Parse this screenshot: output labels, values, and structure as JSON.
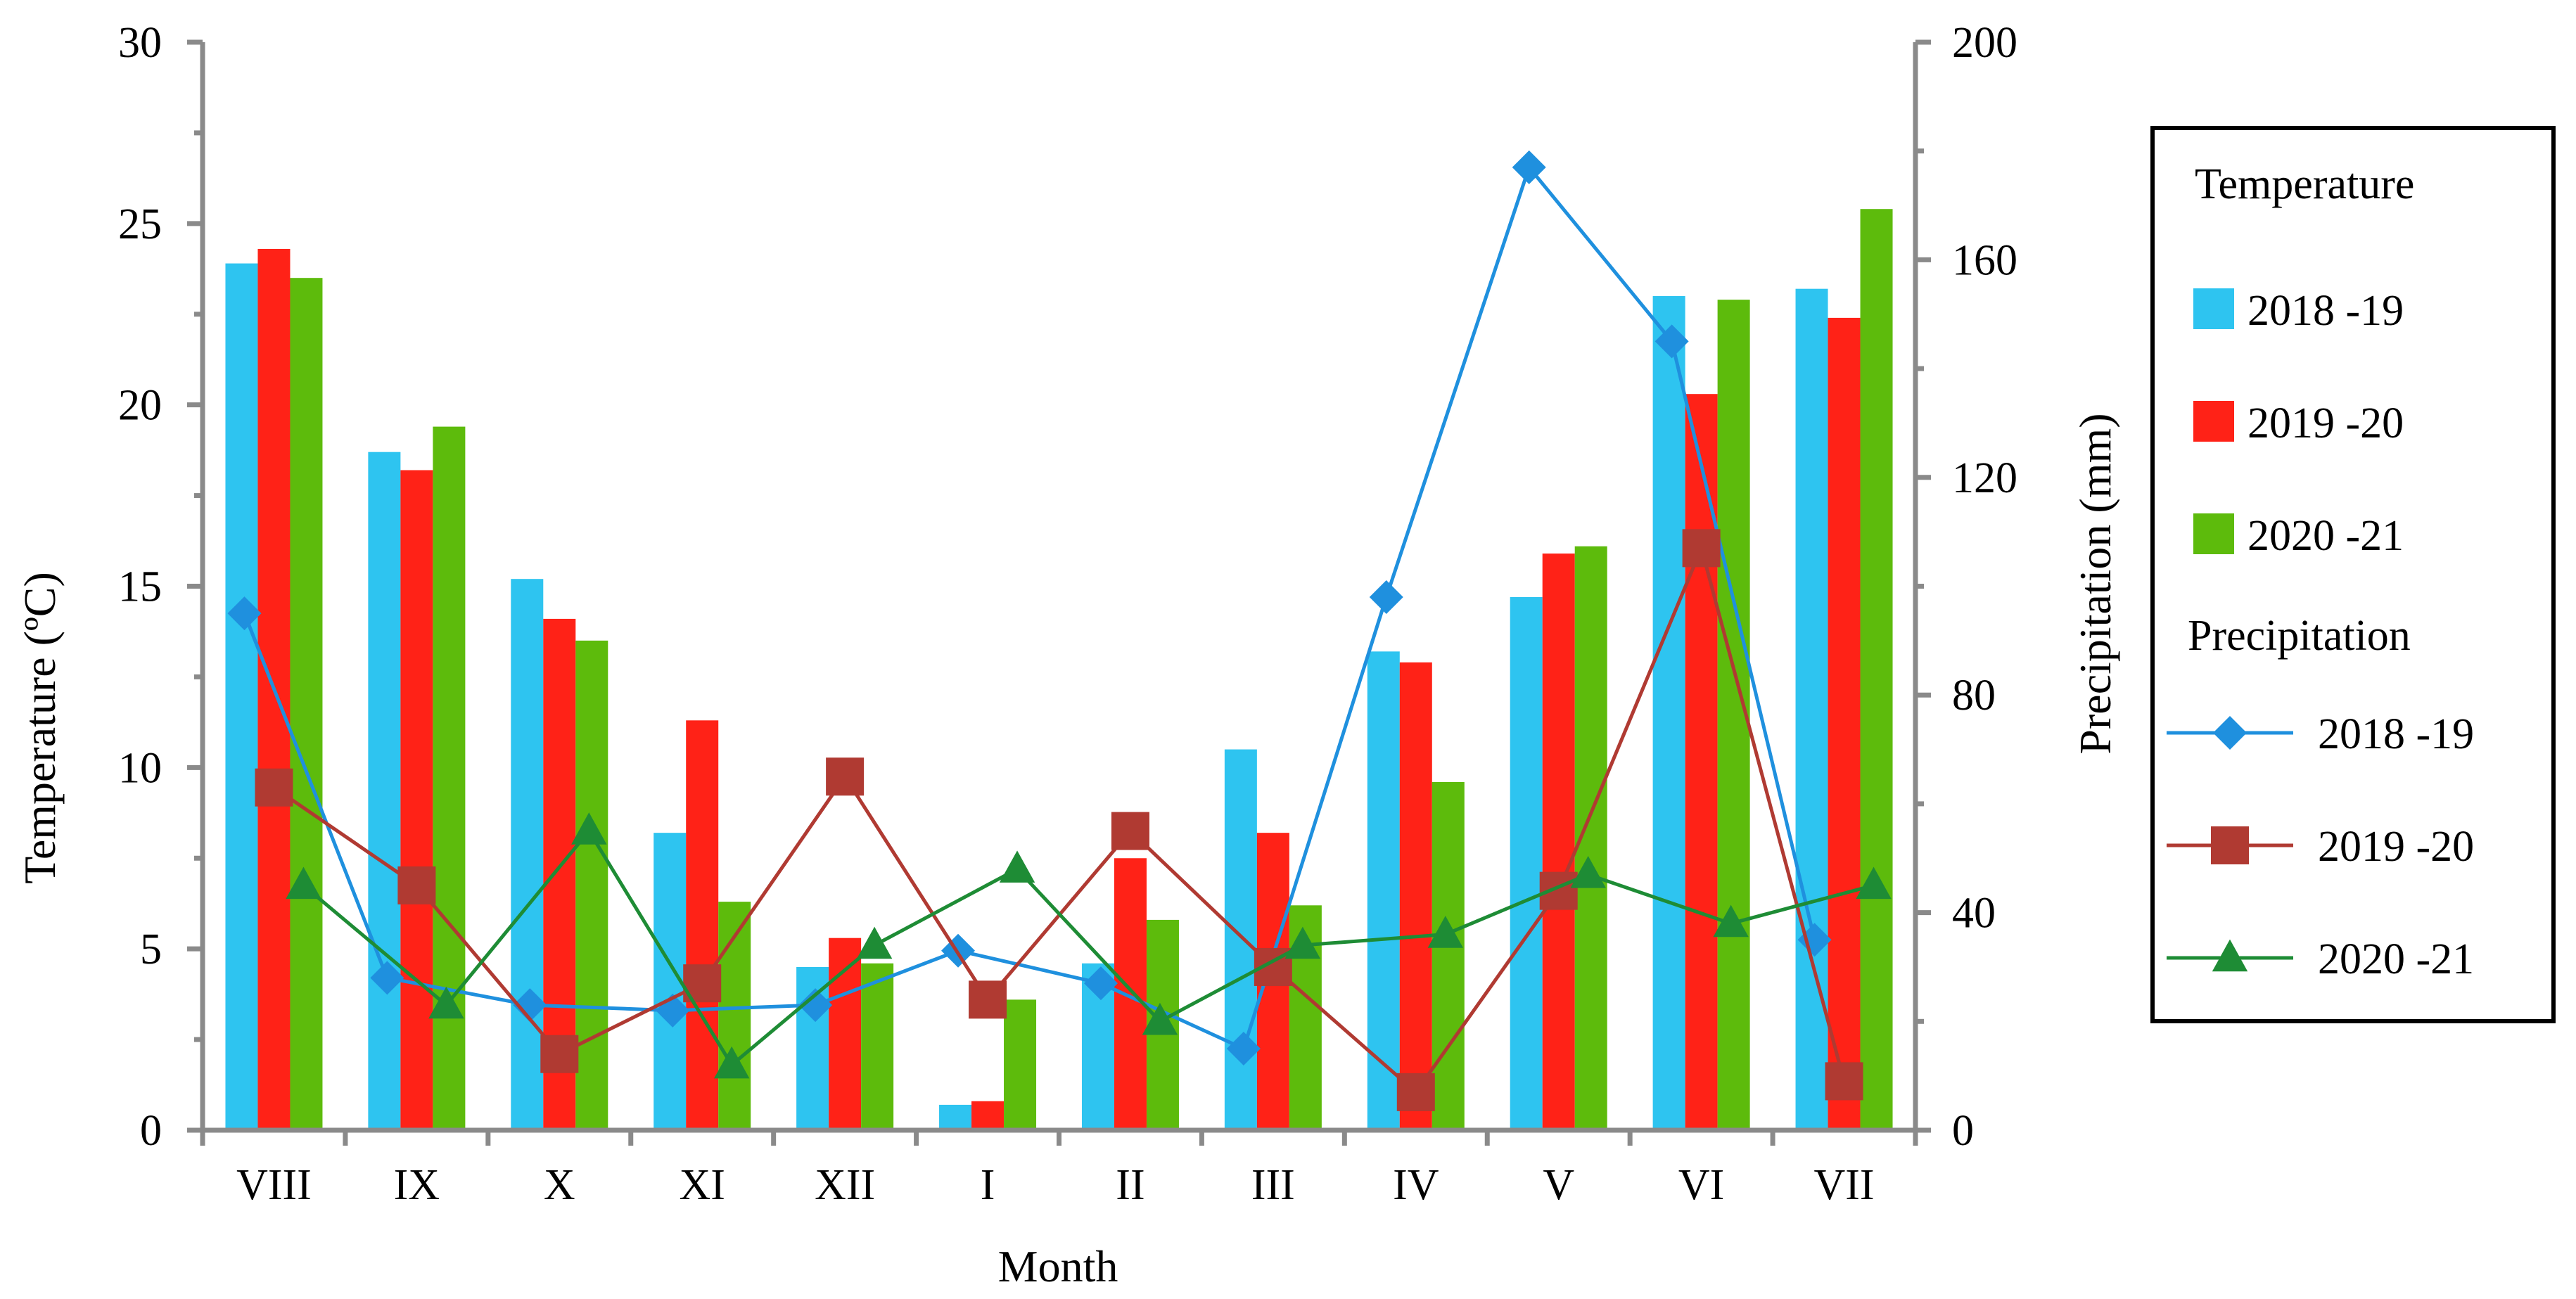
{
  "chart_data": {
    "type": "bar+line",
    "xlabel": "Month",
    "ylabel_left": "Temperature (ºC)",
    "ylabel_right": "Precipitation (mm)",
    "categories": [
      "VIII",
      "IX",
      "X",
      "XI",
      "XII",
      "I",
      "II",
      "III",
      "IV",
      "V",
      "VI",
      "VII"
    ],
    "ylim_left": [
      0,
      30
    ],
    "yticks_left": [
      "0",
      "5",
      "10",
      "15",
      "20",
      "25",
      "30"
    ],
    "ylim_right": [
      0,
      200
    ],
    "yticks_right": [
      "0",
      "40",
      "80",
      "120",
      "160",
      "200"
    ],
    "temperature_series": [
      {
        "name": "2018 -19",
        "color": "#2EC4F0",
        "values": [
          23.9,
          18.7,
          15.2,
          8.2,
          4.5,
          0.7,
          4.6,
          10.5,
          13.2,
          14.7,
          23.0,
          23.2
        ]
      },
      {
        "name": "2019 -20",
        "color": "#FF2217",
        "values": [
          24.3,
          18.2,
          14.1,
          11.3,
          5.3,
          0.8,
          7.5,
          8.2,
          12.9,
          15.9,
          20.3,
          22.4
        ]
      },
      {
        "name": "2020 -21",
        "color": "#5DBB0C",
        "values": [
          23.5,
          19.4,
          13.5,
          6.3,
          4.6,
          3.6,
          5.8,
          6.2,
          9.6,
          16.1,
          22.9,
          25.4
        ]
      }
    ],
    "precipitation_series": [
      {
        "name": "2018 -19",
        "color": "#1F90DE",
        "marker": "diamond",
        "values": [
          95,
          28,
          23,
          22,
          23,
          33,
          27,
          15,
          98,
          177,
          145,
          35
        ]
      },
      {
        "name": "2019 -20",
        "color": "#B03A32",
        "marker": "square",
        "values": [
          63,
          45,
          14,
          27,
          65,
          24,
          55,
          30,
          7,
          44,
          107,
          9
        ]
      },
      {
        "name": "2020 -21",
        "color": "#1E8C35",
        "marker": "triangle",
        "values": [
          45,
          23,
          55,
          12,
          34,
          48,
          20,
          34,
          36,
          47,
          38,
          45
        ]
      }
    ],
    "legend": {
      "position": "right",
      "temperature_heading": "Temperature",
      "precipitation_heading": "Precipitation"
    }
  }
}
